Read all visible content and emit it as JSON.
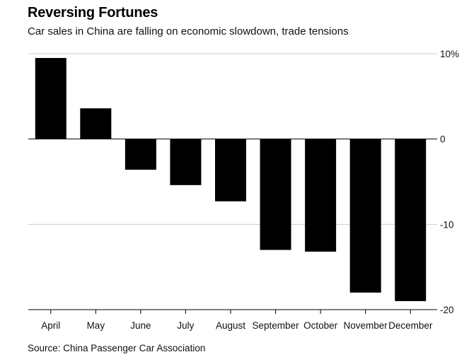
{
  "header": {
    "title": "Reversing Fortunes",
    "subtitle": "Car sales in China are falling on economic slowdown, trade tensions"
  },
  "footer": {
    "source": "Source: China Passenger Car Association"
  },
  "chart_data": {
    "type": "bar",
    "title": "Reversing Fortunes",
    "subtitle": "Car sales in China are falling on economic slowdown, trade tensions",
    "categories": [
      "April",
      "May",
      "June",
      "July",
      "August",
      "September",
      "October",
      "November",
      "December"
    ],
    "values": [
      9.5,
      3.6,
      -3.6,
      -5.4,
      -7.3,
      -13.0,
      -13.2,
      -18.0,
      -19.0
    ],
    "xlabel": "",
    "ylabel": "",
    "ylim": [
      -20,
      10
    ],
    "yticks": [
      10,
      0,
      -10,
      -20
    ],
    "ytick_labels": [
      "10%",
      "0",
      "-10",
      "-20"
    ],
    "y_axis_side": "right",
    "grid": true,
    "bar_color": "#000000",
    "grid_color": "#cccccc"
  }
}
